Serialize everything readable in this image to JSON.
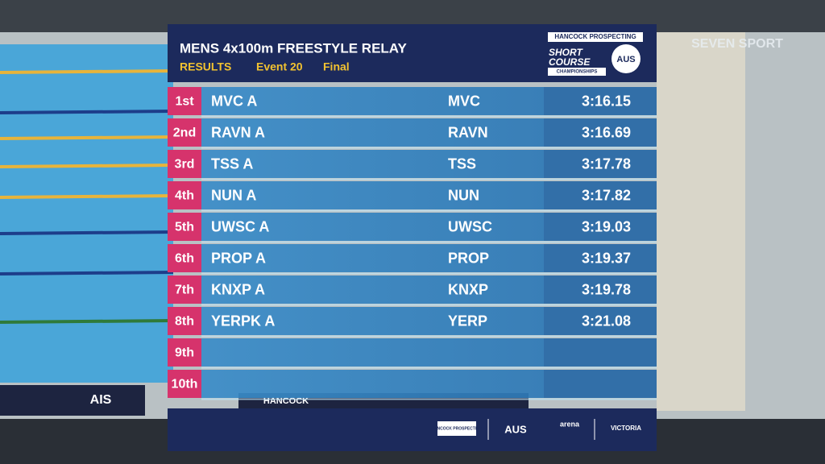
{
  "header": {
    "title": "MENS 4x100m FREESTYLE RELAY",
    "label": "RESULTS",
    "event": "Event 20",
    "round": "Final"
  },
  "logo": {
    "sponsor": "HANCOCK PROSPECTING",
    "line1": "SHORT",
    "line2": "COURSE",
    "line3": "CHAMPIONSHIPS",
    "badge": "AUS"
  },
  "broadcaster": "SEVEN SPORT",
  "results": [
    {
      "place": "1st",
      "team": "MVC A",
      "code": "MVC",
      "time": "3:16.15"
    },
    {
      "place": "2nd",
      "team": "RAVN A",
      "code": "RAVN",
      "time": "3:16.69"
    },
    {
      "place": "3rd",
      "team": "TSS A",
      "code": "TSS",
      "time": "3:17.78"
    },
    {
      "place": "4th",
      "team": "NUN A",
      "code": "NUN",
      "time": "3:17.82"
    },
    {
      "place": "5th",
      "team": "UWSC A",
      "code": "UWSC",
      "time": "3:19.03"
    },
    {
      "place": "6th",
      "team": "PROP A",
      "code": "PROP",
      "time": "3:19.37"
    },
    {
      "place": "7th",
      "team": "KNXP A",
      "code": "KNXP",
      "time": "3:19.78"
    },
    {
      "place": "8th",
      "team": "YERPK A",
      "code": "YERP",
      "time": "3:21.08"
    },
    {
      "place": "9th"
    },
    {
      "place": "10th"
    }
  ],
  "footer": {
    "sponsor": "HANCOCK PROSPECTING",
    "aus": "AUS",
    "arena": "arena",
    "state": "VICTORIA"
  },
  "banners": {
    "left": "AIS",
    "middle": "HANCOCK"
  }
}
